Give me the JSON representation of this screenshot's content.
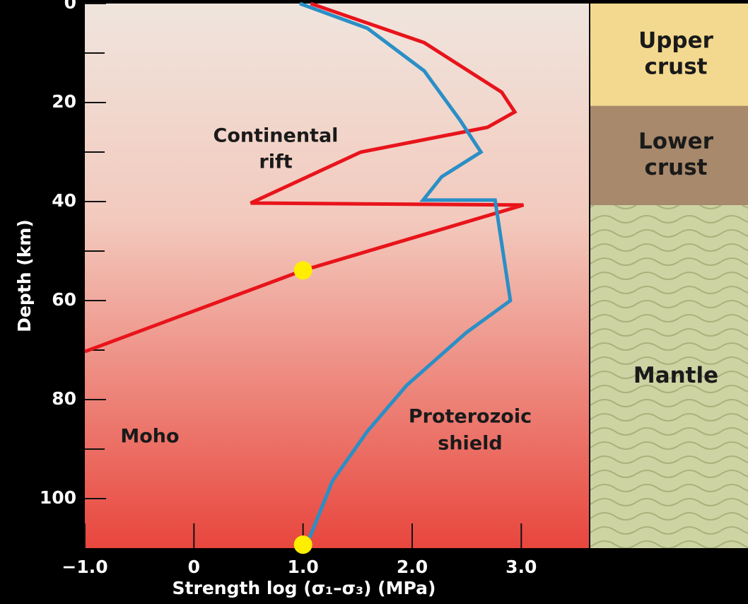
{
  "chart_data": {
    "type": "line",
    "x_label": "Strength log (σ₁–σ₃) (MPa)",
    "y_label": "Depth (km)",
    "xlim": [
      -1.0,
      3.62
    ],
    "ylim": [
      0,
      110
    ],
    "y_inverted": true,
    "xticks": [
      {
        "value": -1,
        "label": "−1.0"
      },
      0,
      {
        "value": 1,
        "label": "1.0"
      },
      {
        "value": 2,
        "label": "2.0"
      },
      {
        "value": 3,
        "label": "3.0"
      }
    ],
    "yticks": [
      0,
      20,
      40,
      60,
      80,
      100
    ],
    "yminor_ticks": [
      10,
      30,
      50,
      70,
      90
    ],
    "series": [
      {
        "label_lines": [
          "Continental",
          "rift"
        ],
        "color": "#e8141b",
        "x": [
          1.07,
          2.11,
          2.82,
          2.94,
          2.69,
          1.53,
          0.52,
          3.02,
          1.0,
          -1.0
        ],
        "values": [
          0,
          7.9,
          17.9,
          21.9,
          25,
          30,
          40.3,
          40.7,
          53.9,
          70.3
        ]
      },
      {
        "label_lines": [
          "Proterozoic",
          "shield"
        ],
        "color": "#2a8fc6",
        "x": [
          0.97,
          1.59,
          2.11,
          2.44,
          2.63,
          2.27,
          2.1,
          2.76,
          2.9,
          2.5,
          1.95,
          1.59,
          1.27,
          1.06
        ],
        "values": [
          0,
          5,
          13.6,
          23.6,
          30,
          35,
          39.7,
          39.7,
          60,
          66.4,
          77.1,
          86.4,
          96.4,
          107.9
        ]
      }
    ],
    "points": {
      "color": "#ffee00",
      "x": [
        1.0,
        1.0
      ],
      "values": [
        53.9,
        109.3
      ]
    },
    "moho_label": "Moho",
    "layers": [
      {
        "lines": [
          "Upper",
          "crust"
        ],
        "top": 0,
        "bottom": 20.7,
        "color": "#f3d98f"
      },
      {
        "lines": [
          "Lower",
          "crust"
        ],
        "top": 20.7,
        "bottom": 40.7,
        "color": "#a8896b"
      },
      {
        "lines": [
          "Mantle"
        ],
        "top": 40.7,
        "bottom": 110,
        "color": "#cdd3a3"
      }
    ]
  }
}
